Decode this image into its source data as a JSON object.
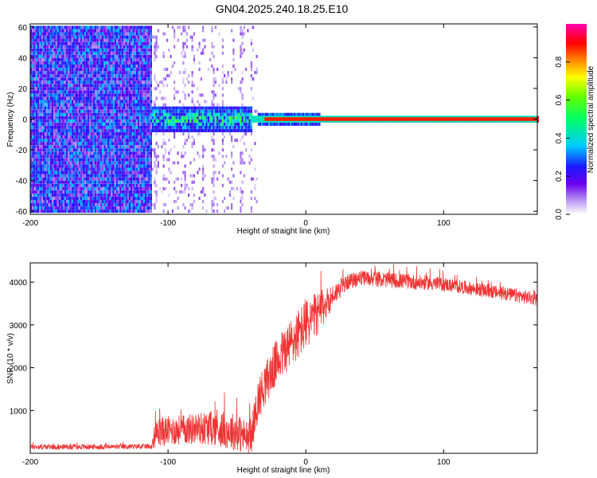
{
  "title": "GN04.2025.240.18.25.E10",
  "chart_data": [
    {
      "type": "heatmap",
      "title": "GN04.2025.240.18.25.E10",
      "xlabel": "Height of straight line (km)",
      "ylabel": "Frequency (Hz)",
      "xlim": [
        -200,
        168
      ],
      "ylim": [
        -62,
        62
      ],
      "xticks": [
        "-200",
        "-100",
        "0",
        "100"
      ],
      "xtick_values": [
        -200,
        -100,
        0,
        100
      ],
      "yticks": [
        "60",
        "40",
        "20",
        "0",
        "-20",
        "-40",
        "-60"
      ],
      "ytick_values": [
        60,
        40,
        20,
        0,
        -20,
        -40,
        -60
      ],
      "colorbar": {
        "label": "Normalized spectral amplitude",
        "range": [
          0,
          1
        ],
        "ticks": [
          "0.0",
          "0.2",
          "0.4",
          "0.6",
          "0.8"
        ],
        "tick_values": [
          0.0,
          0.2,
          0.4,
          0.6,
          0.8
        ]
      },
      "regions": [
        {
          "name": "noise",
          "x_range": [
            -200,
            -112
          ],
          "freq_range": [
            -60,
            60
          ],
          "amplitude": [
            0.15,
            0.35
          ]
        },
        {
          "name": "sparse-noise",
          "x_range": [
            -112,
            -35
          ],
          "freq_range": [
            -60,
            60
          ],
          "amplitude": [
            0.02,
            0.1
          ]
        },
        {
          "name": "signal-broad",
          "x_range": [
            -112,
            -40
          ],
          "freq_range": [
            -8,
            8
          ],
          "amplitude": [
            0.3,
            0.6
          ]
        },
        {
          "name": "signal-narrow",
          "x_range": [
            -40,
            168
          ],
          "freq_center": 0,
          "amplitude": [
            0.8,
            0.95
          ]
        }
      ]
    },
    {
      "type": "line",
      "xlabel": "Height of straight line (km)",
      "ylabel": "SNR (10 * v/v)",
      "xlim": [
        -200,
        168
      ],
      "ylim": [
        0,
        4450
      ],
      "xticks": [
        "-200",
        "-100",
        "0",
        "100"
      ],
      "xtick_values": [
        -200,
        -100,
        0,
        100
      ],
      "yticks": [
        "4000",
        "3000",
        "2000",
        "1000"
      ],
      "ytick_values": [
        4000,
        3000,
        2000,
        1000
      ],
      "color": "#ee3333",
      "series": [
        {
          "name": "SNR",
          "x": [
            -200,
            -150,
            -112,
            -108,
            -90,
            -70,
            -50,
            -40,
            -35,
            -30,
            -20,
            -10,
            0,
            10,
            20,
            30,
            40,
            60,
            80,
            100,
            120,
            140,
            160,
            168
          ],
          "base": [
            150,
            150,
            160,
            500,
            550,
            600,
            500,
            300,
            1200,
            1600,
            2200,
            2600,
            3000,
            3300,
            3700,
            4000,
            4100,
            4050,
            4000,
            3950,
            3850,
            3750,
            3650,
            3600
          ],
          "noise": [
            60,
            60,
            60,
            350,
            350,
            400,
            450,
            400,
            500,
            500,
            550,
            600,
            600,
            500,
            250,
            180,
            180,
            180,
            180,
            160,
            160,
            160,
            160,
            160
          ]
        }
      ]
    }
  ]
}
